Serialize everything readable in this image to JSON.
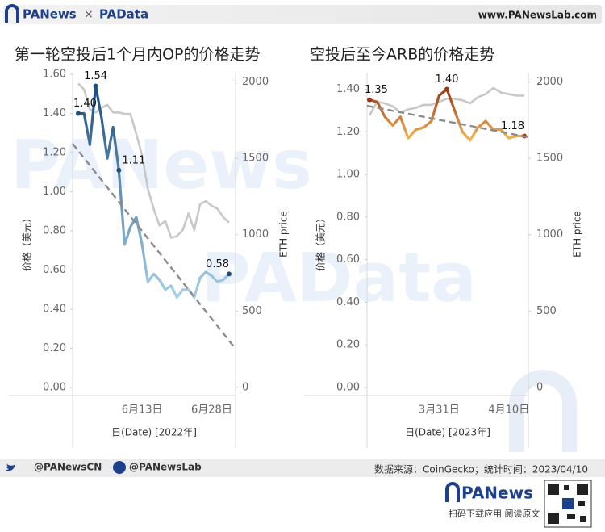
{
  "header": {
    "brand": "PANews",
    "cross": "×",
    "brand2": "PAData",
    "site": "www.PANewsLab.com"
  },
  "watermark": [
    "PANews",
    "PAData"
  ],
  "chart_data": [
    {
      "type": "line",
      "title": "第一轮空投后1个月内OP的价格走势",
      "y_label": "价格（美元）",
      "y2_label": "ETH price",
      "x_label": "日(Date) [2022年]",
      "categories": [
        null,
        null,
        null,
        null,
        null,
        null,
        null,
        null,
        null,
        null,
        null,
        "6月13日",
        null,
        null,
        null,
        null,
        null,
        null,
        null,
        null,
        null,
        null,
        null,
        "6月28日",
        null,
        null,
        null
      ],
      "ylim": [
        0,
        1.6
      ],
      "yticks": [
        {
          "value": 0,
          "label": "0.00"
        },
        {
          "value": 0.2,
          "label": "0.20"
        },
        {
          "value": 0.4,
          "label": "0.40"
        },
        {
          "value": 0.6,
          "label": "0.60"
        },
        {
          "value": 0.8,
          "label": "0.80"
        },
        {
          "value": 1.0,
          "label": "1.00"
        },
        {
          "value": 1.2,
          "label": "1.20"
        },
        {
          "value": 1.4,
          "label": "1.40"
        },
        {
          "value": 1.6,
          "label": "1.60"
        }
      ],
      "y2lim": [
        0,
        2050
      ],
      "y2ticks": [
        0,
        500,
        1000,
        1500,
        2000
      ],
      "series": [
        {
          "name": "OP",
          "colors": [
            "#a6cfe8",
            "#1d4e7c"
          ],
          "values": [
            1.4,
            1.4,
            1.24,
            1.54,
            1.38,
            1.17,
            1.33,
            1.11,
            0.73,
            0.82,
            0.87,
            0.73,
            0.54,
            0.58,
            0.55,
            0.5,
            0.52,
            0.46,
            0.5,
            0.5,
            0.46,
            0.56,
            0.59,
            0.57,
            0.54,
            0.55,
            0.58
          ],
          "value_labels": [
            "1.40",
            null,
            null,
            "1.54",
            null,
            null,
            null,
            "1.11",
            null,
            null,
            null,
            null,
            null,
            null,
            null,
            null,
            null,
            null,
            null,
            null,
            null,
            null,
            null,
            null,
            null,
            null,
            "0.58"
          ]
        },
        {
          "name": "ETH price",
          "axis": "y2",
          "color": "#c8c8c8",
          "values": [
            1990,
            1950,
            1820,
            1800,
            1830,
            1850,
            1800,
            1800,
            1790,
            1790,
            1660,
            1520,
            1300,
            1170,
            1060,
            1090,
            980,
            990,
            1030,
            1140,
            1030,
            1200,
            1220,
            1190,
            1170,
            1115,
            1080
          ]
        }
      ]
    },
    {
      "type": "line",
      "title": "空投后至今ARB的价格走势",
      "y_label": "价格（美元）",
      "y2_label": "ETH price",
      "x_label": "日(Date) [2023年]",
      "categories": [
        null,
        null,
        null,
        null,
        null,
        null,
        null,
        null,
        null,
        "3月31日",
        null,
        null,
        null,
        null,
        null,
        null,
        null,
        null,
        "4月10日",
        null,
        null
      ],
      "ylim": [
        0,
        1.47
      ],
      "yticks": [
        {
          "value": 0,
          "label": "0.00"
        },
        {
          "value": 0.2,
          "label": "0.20"
        },
        {
          "value": 0.4,
          "label": "0.40"
        },
        {
          "value": 0.6,
          "label": "0.60"
        },
        {
          "value": 0.8,
          "label": "0.80"
        },
        {
          "value": 1.0,
          "label": "1.00"
        },
        {
          "value": 1.2,
          "label": "1.20"
        },
        {
          "value": 1.4,
          "label": "1.40"
        }
      ],
      "y2lim": [
        0,
        2050
      ],
      "y2ticks": [
        0,
        500,
        1000,
        1500,
        2000
      ],
      "series": [
        {
          "name": "ARB",
          "colors": [
            "#f5b553",
            "#9c3a16"
          ],
          "values": [
            1.35,
            1.34,
            1.27,
            1.23,
            1.27,
            1.17,
            1.21,
            1.22,
            1.25,
            1.37,
            1.4,
            1.3,
            1.2,
            1.16,
            1.22,
            1.25,
            1.21,
            1.21,
            1.17,
            1.18,
            1.18
          ],
          "value_labels": [
            "1.35",
            null,
            null,
            null,
            null,
            null,
            null,
            null,
            null,
            null,
            "1.40",
            null,
            null,
            null,
            null,
            null,
            null,
            null,
            null,
            null,
            "1.18"
          ]
        },
        {
          "name": "ETH price",
          "axis": "y2",
          "color": "#c8c8c8",
          "values": [
            1780,
            1870,
            1860,
            1840,
            1800,
            1820,
            1830,
            1850,
            1850,
            1870,
            1890,
            1890,
            1880,
            1860,
            1900,
            1920,
            1960,
            1930,
            1920,
            1910,
            1910
          ]
        }
      ]
    }
  ],
  "footer": {
    "twitter": "@PANewsCN",
    "facebook": "@PANewsLab",
    "source": "数据来源：CoinGecko；统计时间：2023/04/10",
    "brand": "PANews",
    "app": "扫码下载应用  阅读原文"
  }
}
